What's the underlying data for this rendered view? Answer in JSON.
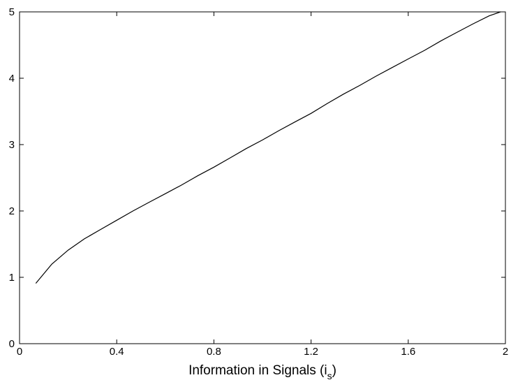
{
  "chart_data": {
    "type": "line",
    "title": "",
    "xlabel": "Information in Signals (i",
    "xlabel_subscript": "s",
    "xlabel_suffix": ")",
    "ylabel": "",
    "xlim": [
      0,
      2
    ],
    "ylim": [
      0,
      5
    ],
    "x_ticks": [
      0,
      0.4,
      0.8,
      1.2,
      1.6,
      2
    ],
    "x_tick_labels": [
      "0",
      "0.4",
      "0.8",
      "1.2",
      "1.6",
      "2"
    ],
    "y_ticks": [
      0,
      1,
      2,
      3,
      4,
      5
    ],
    "y_tick_labels": [
      "0",
      "1",
      "2",
      "3",
      "4",
      "5"
    ],
    "grid": false,
    "legend": "none",
    "line_color": "#000000",
    "series": [
      {
        "x": [
          0.067,
          0.133,
          0.2,
          0.267,
          0.333,
          0.4,
          0.467,
          0.533,
          0.6,
          0.667,
          0.733,
          0.8,
          0.867,
          0.933,
          1.0,
          1.067,
          1.133,
          1.2,
          1.267,
          1.333,
          1.4,
          1.467,
          1.533,
          1.6,
          1.667,
          1.733,
          1.8,
          1.867,
          1.933,
          1.98
        ],
        "y": [
          0.91,
          1.2,
          1.41,
          1.58,
          1.72,
          1.86,
          2.0,
          2.13,
          2.26,
          2.39,
          2.53,
          2.66,
          2.8,
          2.94,
          3.07,
          3.21,
          3.34,
          3.47,
          3.62,
          3.76,
          3.89,
          4.03,
          4.16,
          4.29,
          4.42,
          4.56,
          4.69,
          4.82,
          4.94,
          5.0
        ]
      }
    ]
  }
}
